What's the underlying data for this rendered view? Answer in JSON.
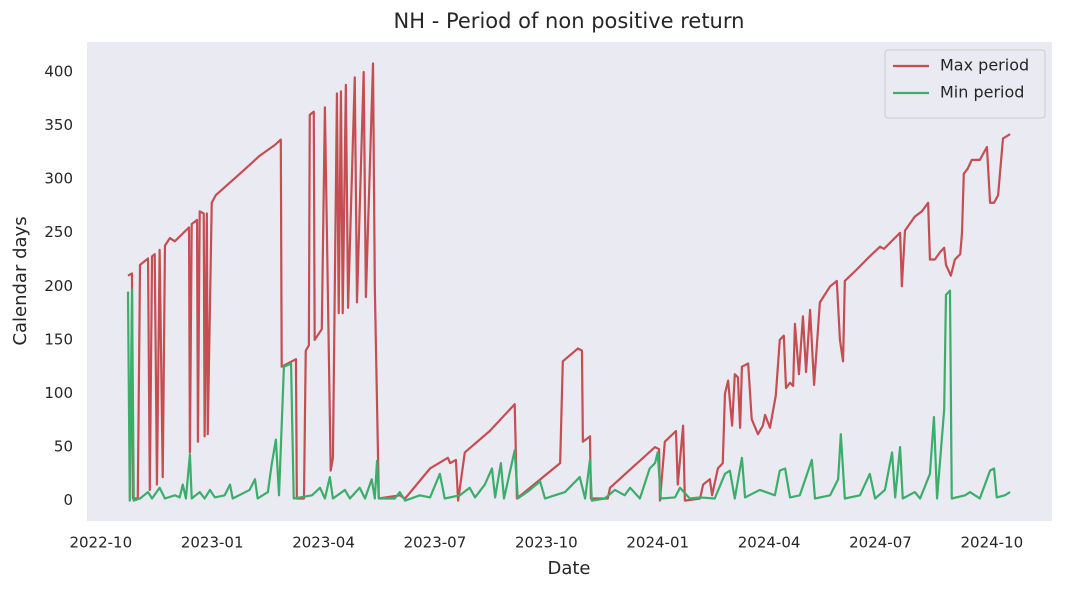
{
  "chart_data": {
    "type": "line",
    "title": "NH - Period of non positive return",
    "xlabel": "Date",
    "ylabel": "Calendar days",
    "xlim": [
      2022.719,
      2024.885
    ],
    "ylim": [
      -19,
      428
    ],
    "xticks": [
      {
        "value": 2022.75,
        "label": "2022-10"
      },
      {
        "value": 2023.0,
        "label": "2023-01"
      },
      {
        "value": 2023.25,
        "label": "2023-04"
      },
      {
        "value": 2023.5,
        "label": "2023-07"
      },
      {
        "value": 2023.75,
        "label": "2023-10"
      },
      {
        "value": 2024.0,
        "label": "2024-01"
      },
      {
        "value": 2024.25,
        "label": "2024-04"
      },
      {
        "value": 2024.5,
        "label": "2024-07"
      },
      {
        "value": 2024.75,
        "label": "2024-10"
      }
    ],
    "yticks": [
      0,
      50,
      100,
      150,
      200,
      250,
      300,
      350,
      400
    ],
    "grid": false,
    "legend": "upper right",
    "series": [
      {
        "name": "Max period",
        "color": "#c44e52",
        "x": [
          2022.811,
          2022.82,
          2022.822,
          2022.833,
          2022.838,
          2022.856,
          2022.86,
          2022.865,
          2022.871,
          2022.876,
          2022.882,
          2022.889,
          2022.894,
          2022.905,
          2022.916,
          2022.948,
          2022.95,
          2022.954,
          2022.966,
          2022.968,
          2022.972,
          2022.981,
          2022.983,
          2022.988,
          2022.99,
          2022.999,
          2023.008,
          2023.062,
          2023.107,
          2023.141,
          2023.154,
          2023.156,
          2023.188,
          2023.19,
          2023.206,
          2023.21,
          2023.217,
          2023.219,
          2023.228,
          2023.23,
          2023.246,
          2023.253,
          2023.266,
          2023.271,
          2023.28,
          2023.284,
          2023.289,
          2023.293,
          2023.3,
          2023.305,
          2023.32,
          2023.325,
          2023.34,
          2023.345,
          2023.361,
          2023.365,
          2023.374,
          2023.421,
          2023.433,
          2023.489,
          2023.529,
          2023.534,
          2023.547,
          2023.552,
          2023.567,
          2023.623,
          2023.679,
          2023.684,
          2023.781,
          2023.787,
          2023.821,
          2023.83,
          2023.832,
          2023.848,
          2023.85,
          2023.888,
          2023.893,
          2023.994,
          2024.003,
          2024.005,
          2024.016,
          2024.041,
          2024.045,
          2024.057,
          2024.061,
          2024.095,
          2024.102,
          2024.117,
          2024.122,
          2024.135,
          2024.146,
          2024.151,
          2024.158,
          2024.167,
          2024.173,
          2024.18,
          2024.185,
          2024.189,
          2024.203,
          2024.211,
          2024.225,
          2024.236,
          2024.241,
          2024.252,
          2024.265,
          2024.274,
          2024.283,
          2024.288,
          2024.297,
          2024.304,
          2024.308,
          2024.317,
          2024.326,
          2024.333,
          2024.342,
          2024.351,
          2024.364,
          2024.387,
          2024.402,
          2024.409,
          2024.416,
          2024.42,
          2024.445,
          2024.476,
          2024.499,
          2024.508,
          2024.544,
          2024.548,
          2024.555,
          2024.577,
          2024.593,
          2024.607,
          2024.611,
          2024.622,
          2024.634,
          2024.643,
          2024.647,
          2024.658,
          2024.667,
          2024.679,
          2024.683,
          2024.687,
          2024.696,
          2024.705,
          2024.723,
          2024.739,
          2024.746,
          2024.755,
          2024.764,
          2024.775,
          2024.791
        ],
        "values": [
          210,
          212,
          2,
          2,
          220,
          226,
          10,
          228,
          230,
          15,
          234,
          22,
          238,
          245,
          242,
          255,
          45,
          258,
          262,
          55,
          270,
          268,
          60,
          268,
          62,
          278,
          285,
          305,
          322,
          332,
          337,
          125,
          132,
          2,
          2,
          140,
          145,
          360,
          363,
          150,
          160,
          367,
          28,
          40,
          380,
          175,
          382,
          175,
          388,
          180,
          395,
          185,
          400,
          190,
          408,
          200,
          2,
          5,
          2,
          30,
          40,
          35,
          38,
          0,
          45,
          65,
          90,
          2,
          35,
          130,
          142,
          140,
          55,
          60,
          2,
          2,
          12,
          50,
          48,
          0,
          55,
          65,
          15,
          70,
          0,
          2,
          15,
          20,
          5,
          30,
          35,
          100,
          112,
          70,
          118,
          115,
          68,
          125,
          128,
          76,
          62,
          70,
          80,
          68,
          98,
          150,
          154,
          105,
          110,
          107,
          165,
          118,
          172,
          120,
          178,
          108,
          185,
          200,
          205,
          150,
          130,
          205,
          215,
          228,
          237,
          235,
          250,
          200,
          252,
          265,
          270,
          278,
          225,
          225,
          232,
          236,
          220,
          210,
          225,
          230,
          250,
          305,
          310,
          318,
          318,
          330,
          278,
          278,
          285,
          338,
          342
        ]
      },
      {
        "name": "Min period",
        "color": "#3aae6a",
        "x": [
          2022.811,
          2022.815,
          2022.82,
          2022.824,
          2022.838,
          2022.856,
          2022.865,
          2022.882,
          2022.894,
          2022.916,
          2022.927,
          2022.934,
          2022.941,
          2022.95,
          2022.954,
          2022.972,
          2022.983,
          2022.995,
          2023.006,
          2023.028,
          2023.04,
          2023.046,
          2023.084,
          2023.096,
          2023.102,
          2023.125,
          2023.134,
          2023.143,
          2023.15,
          2023.161,
          2023.177,
          2023.183,
          2023.197,
          2023.224,
          2023.242,
          2023.253,
          2023.264,
          2023.271,
          2023.298,
          2023.309,
          2023.331,
          2023.343,
          2023.358,
          2023.365,
          2023.37,
          2023.374,
          2023.41,
          2023.421,
          2023.433,
          2023.466,
          2023.489,
          2023.511,
          2023.522,
          2023.556,
          2023.578,
          2023.59,
          2023.612,
          2023.628,
          2023.635,
          2023.648,
          2023.655,
          2023.679,
          2023.686,
          2023.713,
          2023.736,
          2023.747,
          2023.769,
          2023.792,
          2023.825,
          2023.837,
          2023.848,
          2023.852,
          2023.881,
          2023.904,
          2023.926,
          2023.938,
          2023.96,
          2023.982,
          2023.994,
          2024.0,
          2024.007,
          2024.039,
          2024.05,
          2024.072,
          2024.095,
          2024.128,
          2024.151,
          2024.162,
          2024.173,
          2024.189,
          2024.196,
          2024.229,
          2024.263,
          2024.274,
          2024.286,
          2024.297,
          2024.319,
          2024.346,
          2024.353,
          2024.387,
          2024.405,
          2024.411,
          2024.42,
          2024.454,
          2024.476,
          2024.488,
          2024.51,
          2024.526,
          2024.533,
          2024.544,
          2024.55,
          2024.577,
          2024.589,
          2024.611,
          2024.62,
          2024.627,
          2024.643,
          2024.647,
          2024.656,
          2024.66,
          2024.69,
          2024.701,
          2024.723,
          2024.746,
          2024.755,
          2024.761,
          2024.779,
          2024.791
        ],
        "values": [
          195,
          0,
          197,
          0,
          2,
          8,
          2,
          12,
          2,
          5,
          3,
          15,
          2,
          43,
          2,
          8,
          2,
          10,
          3,
          5,
          15,
          2,
          10,
          20,
          2,
          8,
          35,
          57,
          5,
          125,
          128,
          2,
          3,
          5,
          12,
          2,
          22,
          2,
          10,
          2,
          12,
          2,
          20,
          2,
          37,
          2,
          2,
          8,
          0,
          5,
          3,
          25,
          2,
          5,
          12,
          3,
          15,
          30,
          3,
          35,
          2,
          47,
          2,
          10,
          18,
          2,
          5,
          8,
          22,
          2,
          38,
          0,
          2,
          10,
          5,
          12,
          2,
          30,
          35,
          45,
          2,
          3,
          12,
          2,
          3,
          2,
          25,
          28,
          2,
          40,
          3,
          10,
          5,
          28,
          30,
          3,
          5,
          38,
          2,
          5,
          20,
          62,
          2,
          5,
          25,
          2,
          10,
          45,
          3,
          50,
          2,
          8,
          2,
          25,
          78,
          2,
          85,
          192,
          196,
          2,
          5,
          8,
          2,
          28,
          30,
          3,
          5,
          8
        ]
      }
    ]
  }
}
